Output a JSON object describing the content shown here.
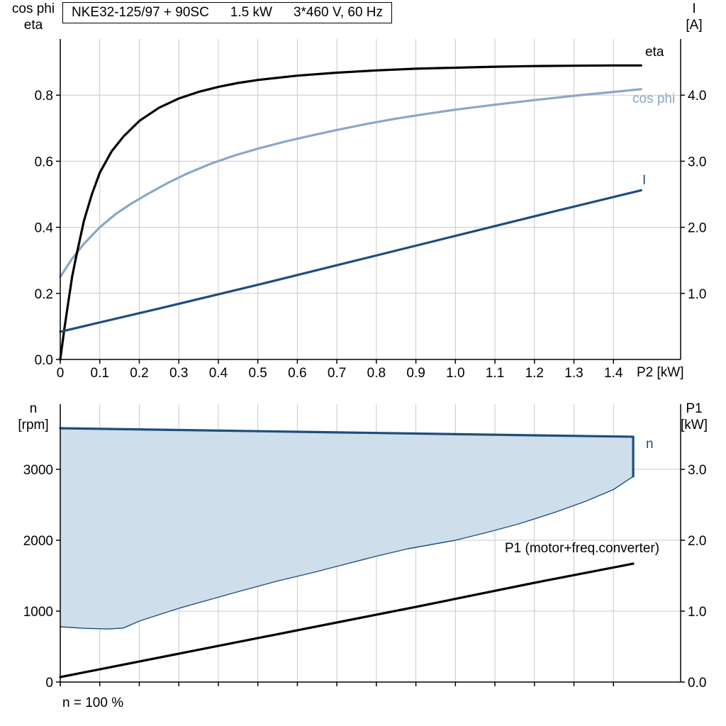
{
  "style": {
    "grid": "#c9c9c9",
    "axis": "#000000",
    "background": "#ffffff"
  },
  "chart_data": [
    {
      "id": "top_chart",
      "type": "line",
      "title": "NKE32-125/97 + 90SC 1.5 kW 3*460 V, 60 Hz",
      "title_parts": [
        "NKE32-125/97 + 90SC",
        "1.5 kW",
        "3*460 V, 60 Hz"
      ],
      "xlabel": "P2 [kW]",
      "ylabel_left_lines": [
        "cos phi",
        "eta"
      ],
      "ylabel_right_lines": [
        "I",
        "[A]"
      ],
      "x_axis": {
        "min": 0,
        "max": 1.57,
        "ticks": [
          0,
          0.1,
          0.2,
          0.3,
          0.4,
          0.5,
          0.6,
          0.7,
          0.8,
          0.9,
          1.0,
          1.1,
          1.2,
          1.3,
          1.4
        ],
        "tick_labels": [
          "0",
          "0.1",
          "0.2",
          "0.3",
          "0.4",
          "0.5",
          "0.6",
          "0.7",
          "0.8",
          "0.9",
          "1.0",
          "1.1",
          "1.2",
          "1.3",
          "1.4"
        ]
      },
      "y_left": {
        "min": 0,
        "max": 0.97,
        "ticks": [
          0,
          0.2,
          0.4,
          0.6,
          0.8
        ],
        "tick_labels": [
          "0.0",
          "0.2",
          "0.4",
          "0.6",
          "0.8"
        ]
      },
      "y_right": {
        "min": 0,
        "max": 4.85,
        "ticks": [
          1,
          2,
          3,
          4
        ],
        "tick_labels": [
          "1.0",
          "2.0",
          "3.0",
          "4.0"
        ]
      },
      "series": [
        {
          "name": "cos-phi",
          "label": "cos phi",
          "axis": "left",
          "color": "#8ba7c6",
          "width": 3.2,
          "type": "line",
          "points": [
            [
              0,
              0.25
            ],
            [
              0.03,
              0.305
            ],
            [
              0.06,
              0.35
            ],
            [
              0.1,
              0.4
            ],
            [
              0.14,
              0.44
            ],
            [
              0.18,
              0.472
            ],
            [
              0.22,
              0.5
            ],
            [
              0.27,
              0.533
            ],
            [
              0.32,
              0.562
            ],
            [
              0.38,
              0.592
            ],
            [
              0.44,
              0.617
            ],
            [
              0.5,
              0.638
            ],
            [
              0.57,
              0.66
            ],
            [
              0.64,
              0.679
            ],
            [
              0.71,
              0.697
            ],
            [
              0.78,
              0.714
            ],
            [
              0.85,
              0.729
            ],
            [
              0.92,
              0.742
            ],
            [
              1.0,
              0.756
            ],
            [
              1.1,
              0.771
            ],
            [
              1.2,
              0.785
            ],
            [
              1.3,
              0.798
            ],
            [
              1.4,
              0.81
            ],
            [
              1.47,
              0.818
            ]
          ]
        },
        {
          "name": "eta",
          "label": "eta",
          "axis": "left",
          "color": "#000000",
          "width": 3.2,
          "type": "line",
          "points": [
            [
              0,
              0
            ],
            [
              0.01,
              0.09
            ],
            [
              0.02,
              0.17
            ],
            [
              0.03,
              0.25
            ],
            [
              0.04,
              0.31
            ],
            [
              0.06,
              0.42
            ],
            [
              0.08,
              0.5
            ],
            [
              0.1,
              0.565
            ],
            [
              0.13,
              0.63
            ],
            [
              0.16,
              0.675
            ],
            [
              0.2,
              0.722
            ],
            [
              0.25,
              0.762
            ],
            [
              0.3,
              0.79
            ],
            [
              0.35,
              0.81
            ],
            [
              0.4,
              0.825
            ],
            [
              0.45,
              0.837
            ],
            [
              0.5,
              0.846
            ],
            [
              0.6,
              0.859
            ],
            [
              0.7,
              0.868
            ],
            [
              0.8,
              0.875
            ],
            [
              0.9,
              0.88
            ],
            [
              1.0,
              0.883
            ],
            [
              1.1,
              0.886
            ],
            [
              1.2,
              0.888
            ],
            [
              1.3,
              0.889
            ],
            [
              1.4,
              0.89
            ],
            [
              1.47,
              0.89
            ]
          ]
        },
        {
          "name": "current",
          "label": "I",
          "axis": "right",
          "color": "#1d4e7e",
          "width": 3.2,
          "type": "line",
          "points": [
            [
              0,
              0.42
            ],
            [
              0.25,
              0.77
            ],
            [
              0.5,
              1.13
            ],
            [
              0.75,
              1.5
            ],
            [
              1.0,
              1.87
            ],
            [
              1.25,
              2.24
            ],
            [
              1.47,
              2.56
            ]
          ]
        }
      ]
    },
    {
      "id": "bottom_chart",
      "type": "line",
      "title": "",
      "xlabel": "",
      "note": "n = 100 %",
      "ylabel_left_lines": [
        "n",
        "[rpm]"
      ],
      "ylabel_right_lines": [
        "P1",
        "[kW]"
      ],
      "x_axis": {
        "min": 0,
        "max": 1.57,
        "ticks": [
          0,
          0.1,
          0.2,
          0.3,
          0.4,
          0.5,
          0.6,
          0.7,
          0.8,
          0.9,
          1.0,
          1.1,
          1.2,
          1.3,
          1.4
        ],
        "tick_labels": []
      },
      "y_left": {
        "min": 0,
        "max": 3920,
        "ticks": [
          0,
          1000,
          2000,
          3000
        ],
        "tick_labels": [
          "0",
          "1000",
          "2000",
          "3000"
        ]
      },
      "y_right": {
        "min": 0,
        "max": 3.92,
        "ticks": [
          0,
          1,
          2,
          3
        ],
        "tick_labels": [
          "0.0",
          "1.0",
          "2.0",
          "3.0"
        ]
      },
      "series": [
        {
          "name": "speed-range-area",
          "label": "",
          "axis": "left",
          "color": "#cfdeeb",
          "width": 0,
          "type": "area",
          "points": [
            [
              0,
              3580
            ],
            [
              0.3,
              3555
            ],
            [
              0.6,
              3530
            ],
            [
              0.9,
              3505
            ],
            [
              1.2,
              3480
            ],
            [
              1.45,
              3460
            ],
            [
              1.45,
              2900
            ],
            [
              1.4,
              2715
            ],
            [
              1.33,
              2550
            ],
            [
              1.25,
              2390
            ],
            [
              1.16,
              2230
            ],
            [
              1.08,
              2110
            ],
            [
              1.0,
              2000
            ],
            [
              0.96,
              1960
            ],
            [
              0.88,
              1880
            ],
            [
              0.8,
              1775
            ],
            [
              0.72,
              1660
            ],
            [
              0.64,
              1545
            ],
            [
              0.55,
              1425
            ],
            [
              0.46,
              1290
            ],
            [
              0.38,
              1165
            ],
            [
              0.3,
              1040
            ],
            [
              0.25,
              950
            ],
            [
              0.2,
              860
            ],
            [
              0.16,
              762
            ],
            [
              0.12,
              748
            ],
            [
              0.06,
              758
            ],
            [
              0,
              780
            ]
          ]
        },
        {
          "name": "speed-range-lower-boundary",
          "label": "",
          "axis": "left",
          "color": "#1d4e7e",
          "width": 1.4,
          "type": "line",
          "points": [
            [
              0,
              780
            ],
            [
              0.06,
              758
            ],
            [
              0.12,
              748
            ],
            [
              0.16,
              762
            ],
            [
              0.2,
              860
            ],
            [
              0.25,
              950
            ],
            [
              0.3,
              1040
            ],
            [
              0.38,
              1165
            ],
            [
              0.46,
              1290
            ],
            [
              0.55,
              1425
            ],
            [
              0.64,
              1545
            ],
            [
              0.72,
              1660
            ],
            [
              0.8,
              1775
            ],
            [
              0.88,
              1880
            ],
            [
              0.96,
              1960
            ],
            [
              1.0,
              2000
            ],
            [
              1.08,
              2110
            ],
            [
              1.16,
              2230
            ],
            [
              1.25,
              2390
            ],
            [
              1.33,
              2550
            ],
            [
              1.4,
              2715
            ],
            [
              1.45,
              2900
            ]
          ]
        },
        {
          "name": "speed",
          "label": "n",
          "axis": "left",
          "color": "#1d4e7e",
          "width": 3.2,
          "type": "line",
          "points": [
            [
              0,
              3580
            ],
            [
              0.3,
              3555
            ],
            [
              0.6,
              3530
            ],
            [
              0.9,
              3505
            ],
            [
              1.2,
              3480
            ],
            [
              1.45,
              3460
            ],
            [
              1.45,
              2900
            ]
          ]
        },
        {
          "name": "input-power",
          "label": "P1 (motor+freq.converter)",
          "axis": "right",
          "color": "#000000",
          "width": 3.2,
          "type": "line",
          "points": [
            [
              0,
              0.07
            ],
            [
              0.3,
              0.4
            ],
            [
              0.6,
              0.73
            ],
            [
              0.9,
              1.06
            ],
            [
              1.2,
              1.4
            ],
            [
              1.45,
              1.67
            ]
          ]
        }
      ]
    }
  ]
}
